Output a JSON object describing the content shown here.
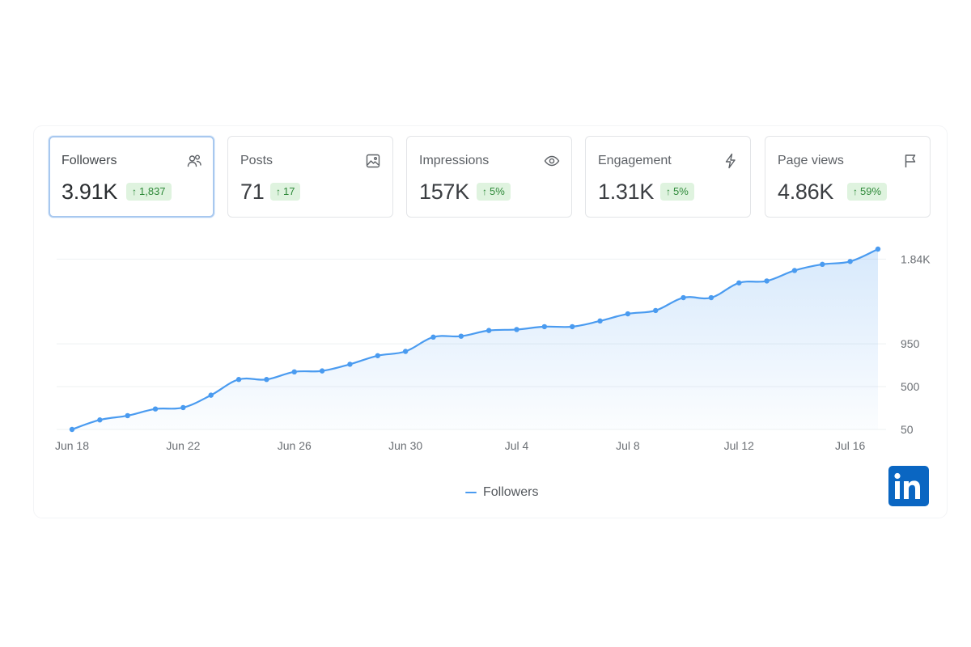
{
  "cards": [
    {
      "title": "Followers",
      "value": "3.91K",
      "change": "1,837",
      "icon": "people-icon",
      "active": true
    },
    {
      "title": "Posts",
      "value": "71",
      "change": "17",
      "icon": "image-icon",
      "active": false
    },
    {
      "title": "Impressions",
      "value": "157K",
      "change": "5%",
      "icon": "eye-icon",
      "active": false
    },
    {
      "title": "Engagement",
      "value": "1.31K",
      "change": "5%",
      "icon": "lightning-icon",
      "active": false
    },
    {
      "title": "Page views",
      "value": "4.86K",
      "change": "59%",
      "icon": "flag-icon",
      "active": false
    }
  ],
  "badge_arrow": "↑",
  "colors": {
    "accent": "#4a9bf0",
    "badge_bg": "#dff3df",
    "badge_text": "#2f8a3a",
    "brand": "#0a66c2"
  },
  "chart_data": {
    "type": "area",
    "x": [
      "Jun 18",
      "Jun 19",
      "Jun 20",
      "Jun 21",
      "Jun 22",
      "Jun 23",
      "Jun 24",
      "Jun 25",
      "Jun 26",
      "Jun 27",
      "Jun 28",
      "Jun 29",
      "Jun 30",
      "Jul 1",
      "Jul 2",
      "Jul 3",
      "Jul 4",
      "Jul 5",
      "Jul 6",
      "Jul 7",
      "Jul 8",
      "Jul 9",
      "Jul 10",
      "Jul 11",
      "Jul 12",
      "Jul 13",
      "Jul 14",
      "Jul 15",
      "Jul 16",
      "Jul 17"
    ],
    "x_ticks": [
      "Jun 18",
      "Jun 22",
      "Jun 26",
      "Jun 30",
      "Jul 4",
      "Jul 8",
      "Jul 12",
      "Jul 16"
    ],
    "series": [
      {
        "name": "Followers",
        "values": [
          50,
          150,
          195,
          265,
          280,
          410,
          575,
          575,
          655,
          665,
          735,
          825,
          870,
          1020,
          1030,
          1090,
          1100,
          1130,
          1130,
          1190,
          1265,
          1300,
          1435,
          1435,
          1590,
          1610,
          1720,
          1785,
          1815,
          1945
        ]
      }
    ],
    "y_ticks": [
      "50",
      "500",
      "950",
      "1.84K"
    ],
    "ylim": [
      50,
      1945
    ],
    "grid": true,
    "legend_position": "bottom-center"
  },
  "legend": {
    "label": "Followers"
  },
  "brand": {
    "logo_text": "in"
  }
}
